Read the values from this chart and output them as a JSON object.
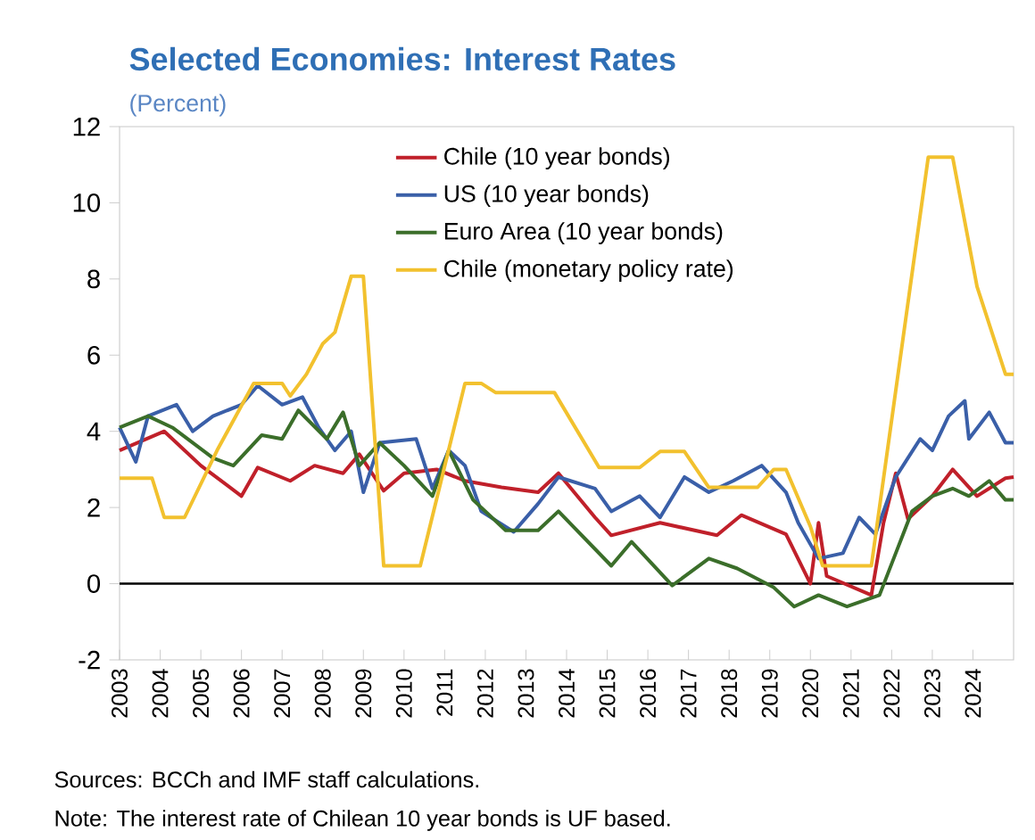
{
  "chart_data": {
    "type": "line",
    "title": "Selected Economies: Interest  Rates",
    "subtitle": "(Percent)",
    "annotations": [
      "Sources: BCCh  and IMF staff calculations.",
      "Note: The interest rate of Chilean 10 year bonds is UF based."
    ],
    "xlim": [
      2003,
      2025
    ],
    "xticks": [
      2003,
      2004,
      2005,
      2006,
      2007,
      2008,
      2009,
      2010,
      2011,
      2012,
      2013,
      2014,
      2015,
      2016,
      2017,
      2018,
      2019,
      2020,
      2021,
      2022,
      2023,
      2024
    ],
    "ylim": [
      -2,
      12
    ],
    "yticks": [
      -2,
      0,
      2,
      4,
      6,
      8,
      10,
      12
    ],
    "ref_lines": [
      {
        "axis": "y",
        "value": 0,
        "color": "#000000"
      }
    ],
    "legend": "top",
    "line_style": "solid",
    "series": [
      {
        "name": "Chile (10 year bonds)",
        "color": "#c0202a",
        "x": [
          2003.0,
          2004.1,
          2005.0,
          2006.0,
          2006.4,
          2007.2,
          2007.8,
          2008.5,
          2008.9,
          2009.5,
          2010.0,
          2010.8,
          2011.5,
          2012.4,
          2013.3,
          2013.8,
          2014.7,
          2015.1,
          2016.3,
          2017.7,
          2018.3,
          2019.4,
          2020.0,
          2020.2,
          2020.4,
          2021.5,
          2021.8,
          2022.1,
          2022.4,
          2023.0,
          2023.5,
          2024.1,
          2024.8,
          2025.0
        ],
        "values": [
          3.5,
          4.0,
          3.1,
          2.3,
          3.05,
          2.7,
          3.1,
          2.9,
          3.4,
          2.44,
          2.9,
          3.0,
          2.7,
          2.53,
          2.4,
          2.9,
          1.74,
          1.27,
          1.6,
          1.27,
          1.8,
          1.3,
          0.0,
          1.6,
          0.2,
          -0.3,
          1.6,
          2.9,
          1.7,
          2.3,
          3.0,
          2.3,
          2.77,
          2.8
        ]
      },
      {
        "name": "US (10 year bonds)",
        "color": "#3a5fa8",
        "x": [
          2003.0,
          2003.4,
          2003.7,
          2004.4,
          2004.8,
          2005.3,
          2006.0,
          2006.4,
          2007.0,
          2007.5,
          2007.9,
          2008.3,
          2008.7,
          2009.0,
          2009.4,
          2010.3,
          2010.7,
          2011.1,
          2011.5,
          2011.9,
          2012.7,
          2013.3,
          2013.8,
          2014.7,
          2015.1,
          2015.8,
          2016.3,
          2016.9,
          2017.5,
          2018.1,
          2018.8,
          2019.4,
          2019.7,
          2020.2,
          2020.8,
          2021.2,
          2021.6,
          2022.1,
          2022.7,
          2023.0,
          2023.4,
          2023.8,
          2023.9,
          2024.4,
          2024.8,
          2025.0
        ],
        "values": [
          4.1,
          3.2,
          4.4,
          4.7,
          4.0,
          4.4,
          4.7,
          5.2,
          4.7,
          4.9,
          4.1,
          3.5,
          4.0,
          2.4,
          3.7,
          3.8,
          2.5,
          3.5,
          3.1,
          1.9,
          1.36,
          2.1,
          2.8,
          2.5,
          1.9,
          2.3,
          1.74,
          2.8,
          2.4,
          2.7,
          3.1,
          2.4,
          1.6,
          0.66,
          0.8,
          1.74,
          1.3,
          2.8,
          3.8,
          3.5,
          4.4,
          4.8,
          3.8,
          4.5,
          3.7,
          3.7
        ]
      },
      {
        "name": "Euro Area (10 year bonds)",
        "color": "#3b6e2a",
        "x": [
          2003.0,
          2003.7,
          2004.3,
          2005.3,
          2005.8,
          2006.5,
          2007.0,
          2007.4,
          2008.1,
          2008.5,
          2008.9,
          2009.4,
          2010.0,
          2010.7,
          2011.1,
          2011.7,
          2012.5,
          2013.3,
          2013.8,
          2015.1,
          2015.6,
          2016.6,
          2017.5,
          2018.2,
          2019.1,
          2019.6,
          2020.2,
          2020.9,
          2021.7,
          2022.1,
          2022.5,
          2023.0,
          2023.5,
          2023.9,
          2024.4,
          2024.8,
          2025.0
        ],
        "values": [
          4.1,
          4.4,
          4.1,
          3.3,
          3.1,
          3.9,
          3.8,
          4.55,
          3.8,
          4.5,
          3.1,
          3.7,
          3.1,
          2.3,
          3.5,
          2.2,
          1.4,
          1.4,
          1.9,
          0.47,
          1.1,
          -0.05,
          0.66,
          0.4,
          -0.1,
          -0.6,
          -0.3,
          -0.6,
          -0.3,
          0.8,
          1.9,
          2.3,
          2.5,
          2.3,
          2.7,
          2.2,
          2.2
        ]
      },
      {
        "name": "Chile (monetary policy rate)",
        "color": "#f2c12e",
        "x": [
          2003.0,
          2003.8,
          2004.1,
          2004.6,
          2005.4,
          2006.3,
          2007.0,
          2007.2,
          2007.6,
          2008.0,
          2008.3,
          2008.7,
          2009.0,
          2009.5,
          2010.4,
          2011.5,
          2011.9,
          2012.25,
          2013.7,
          2014.8,
          2015.8,
          2016.3,
          2016.9,
          2017.5,
          2018.7,
          2019.1,
          2019.4,
          2020.0,
          2020.3,
          2021.5,
          2022.9,
          2023.5,
          2024.1,
          2024.8,
          2025.0
        ],
        "values": [
          2.77,
          2.77,
          1.74,
          1.74,
          3.5,
          5.26,
          5.26,
          4.93,
          5.5,
          6.3,
          6.6,
          8.07,
          8.07,
          0.47,
          0.47,
          5.26,
          5.26,
          5.02,
          5.02,
          3.05,
          3.05,
          3.47,
          3.47,
          2.53,
          2.53,
          3.0,
          3.0,
          1.5,
          0.47,
          0.47,
          11.2,
          11.2,
          7.8,
          5.5,
          5.5
        ]
      }
    ]
  }
}
